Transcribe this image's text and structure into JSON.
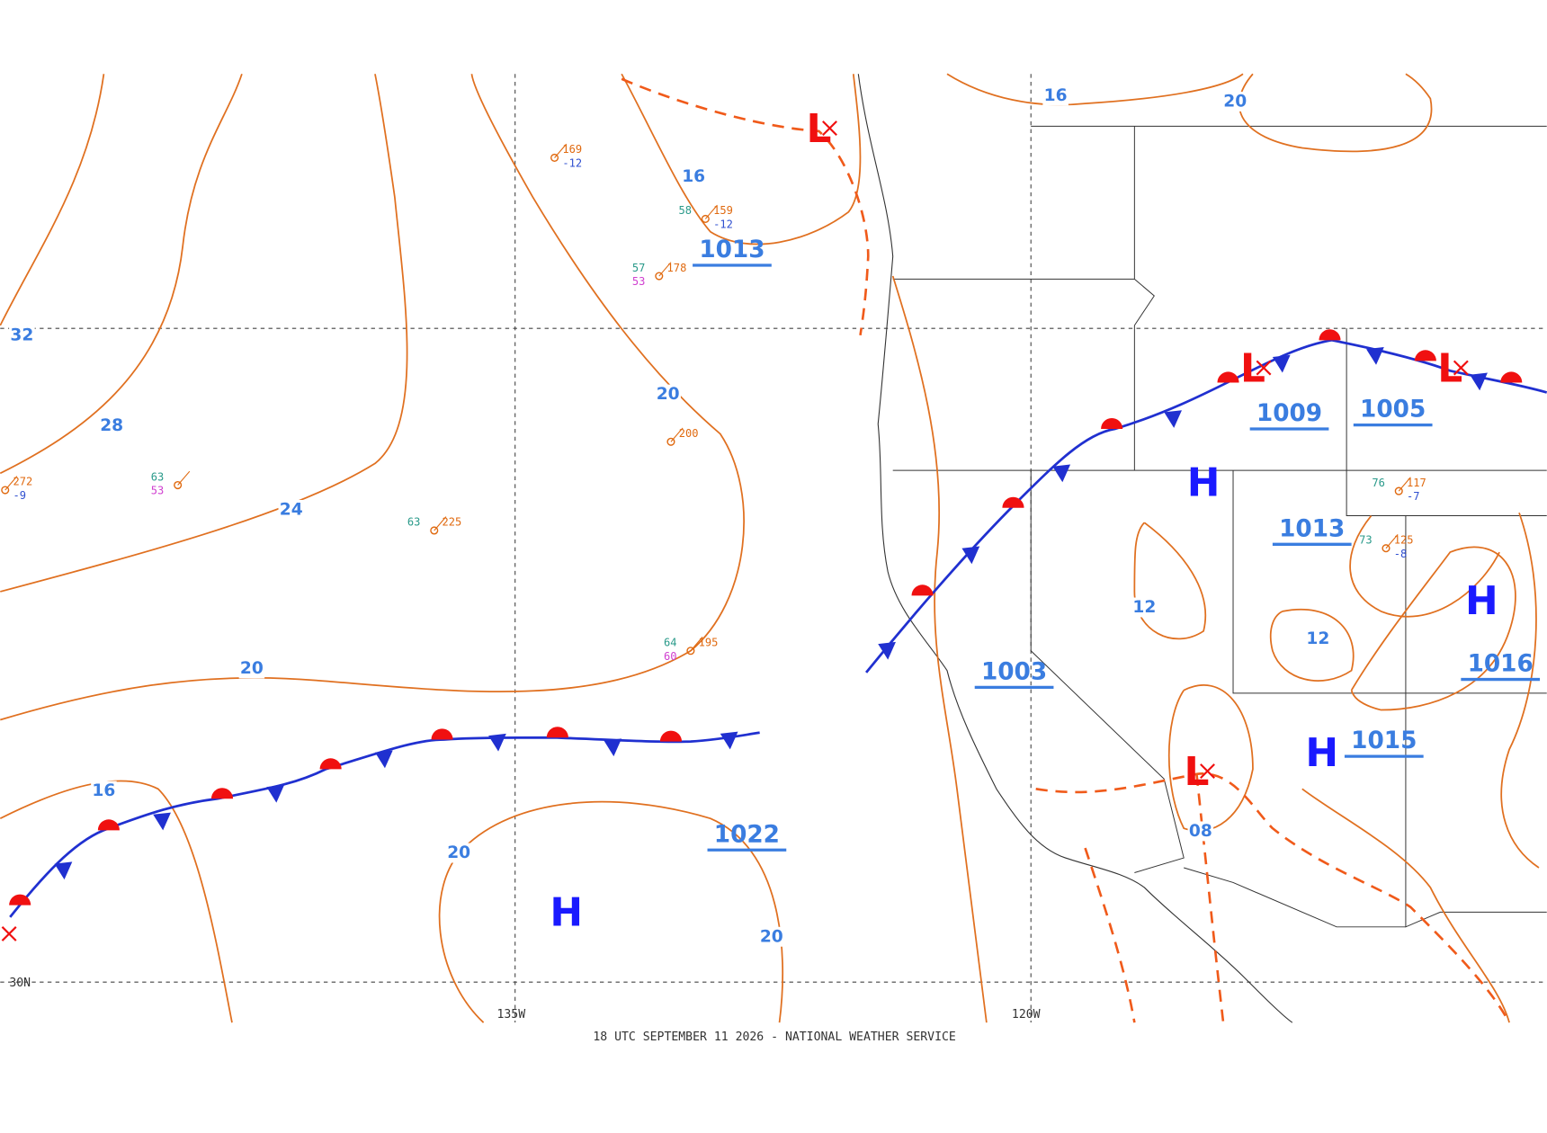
{
  "map": {
    "footer": "18 UTC SEPTEMBER 11 2026 - NATIONAL WEATHER SERVICE",
    "grid_labels": [
      "30N",
      "135W",
      "120W"
    ],
    "isobar_labels": [
      "32",
      "28",
      "24",
      "20",
      "16",
      "20",
      "20",
      "20",
      "16",
      "16",
      "20",
      "12",
      "12",
      "08"
    ],
    "pressure_values": [
      "1013",
      "1022",
      "1009",
      "1005",
      "1013",
      "1003",
      "1015",
      "1016"
    ],
    "highs": [
      "H",
      "H",
      "H",
      "H"
    ],
    "lows": [
      "L",
      "L",
      "L",
      "L"
    ],
    "stations": [
      {
        "temp": "57",
        "pressure": "178",
        "dew": "53"
      },
      {
        "pressure": "169",
        "change": "-12"
      },
      {
        "pressure": "200"
      },
      {
        "temp": "63",
        "pressure": "225"
      },
      {
        "temp": "64",
        "pressure": "195",
        "dew": "60"
      },
      {
        "temp": "63",
        "dew": "53"
      },
      {
        "pressure": "272",
        "change": "-9"
      },
      {
        "temp": "58",
        "pressure": "159",
        "change": "-12"
      },
      {
        "temp": "76",
        "pressure": "117",
        "change": "-7"
      },
      {
        "temp": "73",
        "pressure": "125",
        "change": "-8"
      }
    ]
  }
}
